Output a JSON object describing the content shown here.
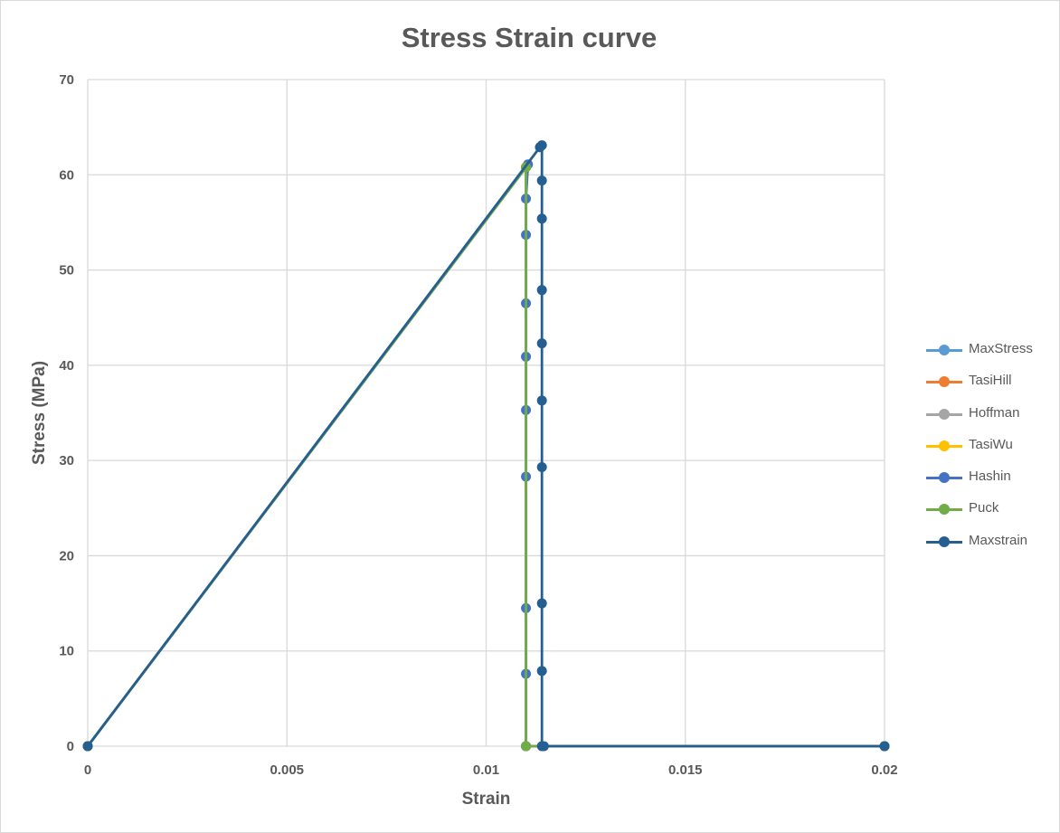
{
  "chart_data": {
    "type": "scatter",
    "title": "Stress Strain curve",
    "xlabel": "Strain",
    "ylabel": "Stress (MPa)",
    "xlim": [
      0,
      0.02
    ],
    "ylim": [
      0,
      70
    ],
    "xticks": [
      0,
      0.005,
      0.01,
      0.015,
      0.02
    ],
    "xtick_labels": [
      "0",
      "0.005",
      "0.01",
      "0.015",
      "0.02"
    ],
    "yticks": [
      0,
      10,
      20,
      30,
      40,
      50,
      60,
      70
    ],
    "ytick_labels": [
      "0",
      "10",
      "20",
      "30",
      "40",
      "50",
      "60",
      "70"
    ],
    "grid": true,
    "legend_position": "right",
    "series": [
      {
        "name": "MaxStress",
        "color": "#5b9bd5",
        "points": [
          [
            0,
            0
          ],
          [
            0.011,
            60.8
          ],
          [
            0.011,
            0
          ],
          [
            0.02,
            0
          ]
        ]
      },
      {
        "name": "TasiHill",
        "color": "#ed7d31",
        "points": [
          [
            0,
            0
          ],
          [
            0.011,
            60.8
          ],
          [
            0.011,
            0
          ],
          [
            0.02,
            0
          ]
        ]
      },
      {
        "name": "Hoffman",
        "color": "#a5a5a5",
        "points": [
          [
            0,
            0
          ],
          [
            0.011,
            60.8
          ],
          [
            0.011,
            0
          ],
          [
            0.02,
            0
          ]
        ]
      },
      {
        "name": "TasiWu",
        "color": "#ffc000",
        "points": [
          [
            0,
            0
          ],
          [
            0.011,
            60.8
          ],
          [
            0.011,
            0
          ],
          [
            0.02,
            0
          ]
        ]
      },
      {
        "name": "Hashin",
        "color": "#4472c4",
        "points": [
          [
            0,
            0
          ],
          [
            0.011,
            60.8
          ],
          [
            0.01105,
            61.1
          ],
          [
            0.011,
            57.5
          ],
          [
            0.011,
            53.7
          ],
          [
            0.011,
            46.5
          ],
          [
            0.011,
            40.9
          ],
          [
            0.011,
            35.3
          ],
          [
            0.011,
            28.3
          ],
          [
            0.011,
            14.5
          ],
          [
            0.011,
            7.6
          ],
          [
            0.011,
            0
          ],
          [
            0.02,
            0
          ]
        ]
      },
      {
        "name": "Puck",
        "color": "#70ad47",
        "points": [
          [
            0,
            0
          ],
          [
            0.011,
            60.8
          ],
          [
            0.011,
            0
          ],
          [
            0.02,
            0
          ]
        ]
      },
      {
        "name": "Maxstrain",
        "color": "#255e91",
        "points": [
          [
            0,
            0
          ],
          [
            0.01135,
            62.9
          ],
          [
            0.0114,
            63.1
          ],
          [
            0.0114,
            59.4
          ],
          [
            0.0114,
            55.4
          ],
          [
            0.0114,
            47.9
          ],
          [
            0.0114,
            42.3
          ],
          [
            0.0114,
            36.3
          ],
          [
            0.0114,
            29.3
          ],
          [
            0.0114,
            15.0
          ],
          [
            0.0114,
            7.9
          ],
          [
            0.0114,
            0
          ],
          [
            0.01145,
            0
          ],
          [
            0.02,
            0
          ]
        ]
      }
    ]
  }
}
